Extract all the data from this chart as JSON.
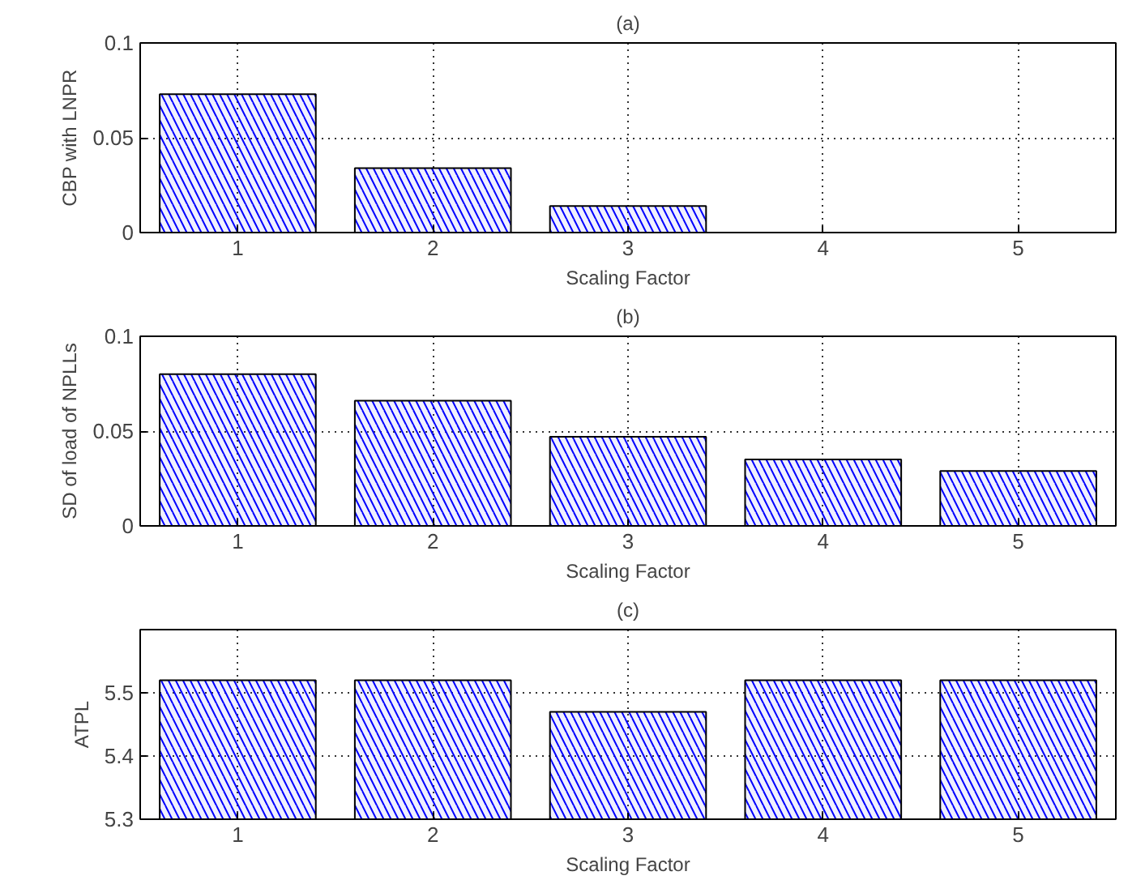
{
  "chart_data": [
    {
      "type": "bar",
      "title": "(a)",
      "xlabel": "Scaling Factor",
      "ylabel": "CBP with LNPR",
      "x": [
        1,
        2,
        3,
        4,
        5
      ],
      "values": [
        0.073,
        0.034,
        0.014,
        0,
        0
      ],
      "color": "#0000ff",
      "xlim": [
        0.5,
        5.5
      ],
      "ylim": [
        0,
        0.1
      ],
      "xticks": [
        1,
        2,
        3,
        4,
        5
      ],
      "yticks": [
        0,
        0.05,
        0.1
      ],
      "grid": true
    },
    {
      "type": "bar",
      "title": "(b)",
      "xlabel": "Scaling Factor",
      "ylabel": "SD of load of NPLLs",
      "x": [
        1,
        2,
        3,
        4,
        5
      ],
      "values": [
        0.08,
        0.066,
        0.047,
        0.035,
        0.029
      ],
      "color": "#0000ff",
      "xlim": [
        0.5,
        5.5
      ],
      "ylim": [
        0,
        0.1
      ],
      "xticks": [
        1,
        2,
        3,
        4,
        5
      ],
      "yticks": [
        0,
        0.05,
        0.1
      ],
      "grid": true
    },
    {
      "type": "bar",
      "title": "(c)",
      "xlabel": "Scaling Factor",
      "ylabel": "ATPL",
      "x": [
        1,
        2,
        3,
        4,
        5
      ],
      "values": [
        5.52,
        5.52,
        5.47,
        5.52,
        5.52
      ],
      "color": "#0000ff",
      "xlim": [
        0.5,
        5.5
      ],
      "ylim": [
        5.3,
        5.6
      ],
      "xticks": [
        1,
        2,
        3,
        4,
        5
      ],
      "yticks": [
        5.3,
        5.4,
        5.5
      ],
      "grid": true
    }
  ]
}
